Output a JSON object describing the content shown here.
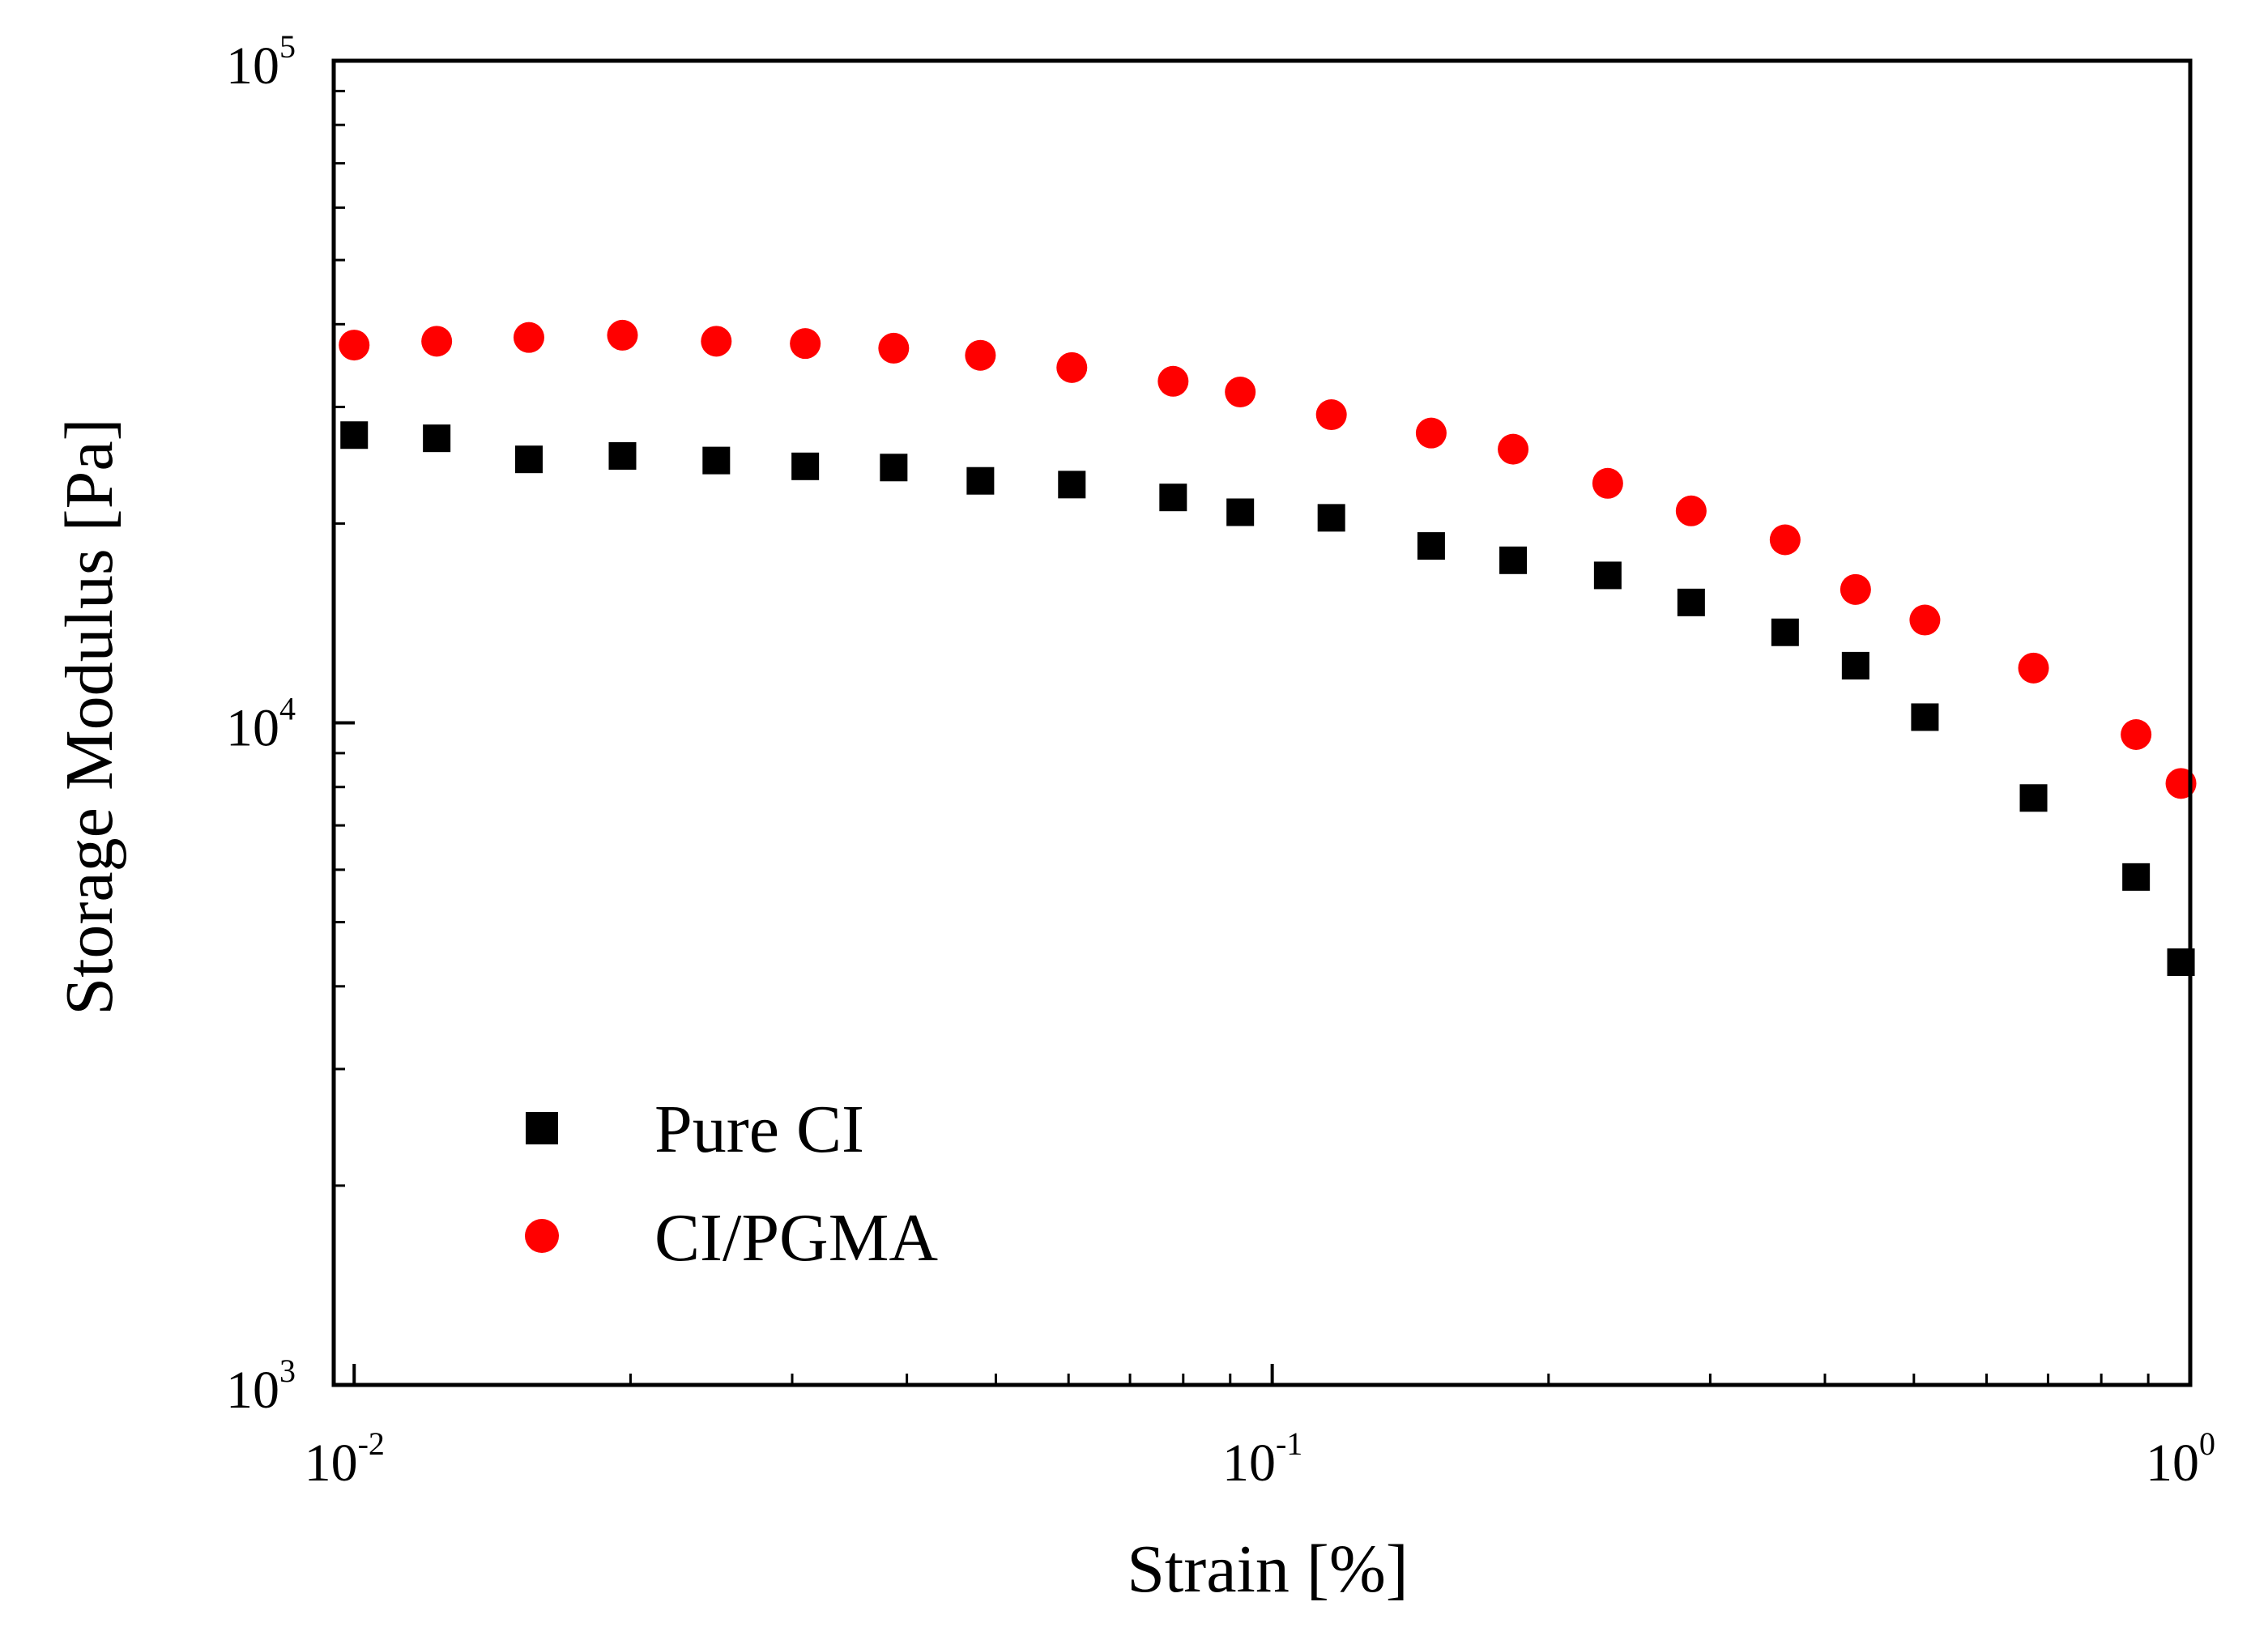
{
  "chart_data": {
    "type": "scatter",
    "title": "",
    "xlabel": "Strain [%]",
    "ylabel": "Storage Modulus [Pa]",
    "x_scale": "log",
    "y_scale": "log",
    "xlim": [
      0.0095,
      1.0
    ],
    "ylim": [
      1000,
      100000
    ],
    "x_ticks": [
      {
        "value": 0.01,
        "base": "10",
        "exp": "-2"
      },
      {
        "value": 0.1,
        "base": "10",
        "exp": "-1"
      },
      {
        "value": 1.0,
        "base": "10",
        "exp": "0"
      }
    ],
    "y_ticks": [
      {
        "value": 1000,
        "base": "10",
        "exp": "3"
      },
      {
        "value": 10000,
        "base": "10",
        "exp": "4"
      },
      {
        "value": 100000,
        "base": "10",
        "exp": "5"
      }
    ],
    "grid": false,
    "legend_position": "lower-left",
    "series": [
      {
        "name": "Pure CI",
        "marker": "square",
        "color": "#000000",
        "x": [
          0.01,
          0.0123,
          0.0155,
          0.0196,
          0.0248,
          0.031,
          0.0387,
          0.0481,
          0.0605,
          0.078,
          0.0923,
          0.116,
          0.149,
          0.183,
          0.232,
          0.286,
          0.362,
          0.432,
          0.514,
          0.675,
          0.873,
          0.977
        ],
        "y": [
          27200,
          26900,
          25000,
          25300,
          24900,
          24400,
          24300,
          23200,
          22900,
          21900,
          20800,
          20400,
          18500,
          17600,
          16700,
          15200,
          13700,
          12200,
          10200,
          7700,
          5850,
          4350
        ]
      },
      {
        "name": "CI/PGMA",
        "marker": "circle",
        "color": "#ff0000",
        "x": [
          0.01,
          0.0123,
          0.0155,
          0.0196,
          0.0248,
          0.031,
          0.0387,
          0.0481,
          0.0605,
          0.078,
          0.0923,
          0.116,
          0.149,
          0.183,
          0.232,
          0.286,
          0.362,
          0.432,
          0.514,
          0.675,
          0.873,
          0.977
        ],
        "y": [
          37200,
          37700,
          38200,
          38500,
          37700,
          37400,
          36800,
          35900,
          34400,
          32800,
          31600,
          29200,
          27400,
          25900,
          23000,
          20900,
          18900,
          15900,
          14300,
          12100,
          9600,
          8100
        ]
      }
    ]
  }
}
